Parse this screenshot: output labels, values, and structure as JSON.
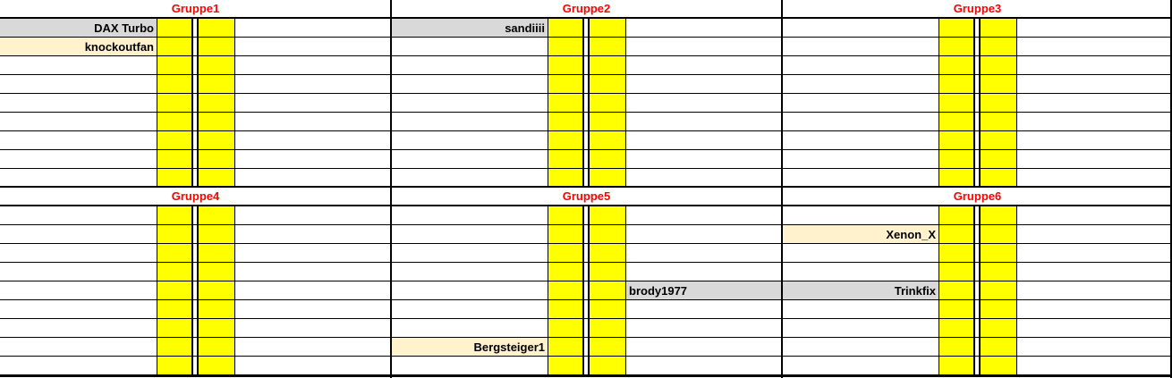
{
  "colors": {
    "header_text": "#ff0000",
    "score_column": "#ffff00",
    "highlight_gray": "#d9d9d9",
    "highlight_cream": "#fff2cc"
  },
  "groups": [
    {
      "title": "Gruppe1",
      "entries": [
        {
          "row": 1,
          "text": "DAX Turbo",
          "bg": "#d9d9d9"
        },
        {
          "row": 2,
          "text": "knockoutfan",
          "bg": "#fff2cc"
        }
      ]
    },
    {
      "title": "Gruppe2",
      "entries": [
        {
          "row": 1,
          "text": "sandiiii",
          "bg": "#d9d9d9"
        }
      ]
    },
    {
      "title": "Gruppe3",
      "entries": []
    },
    {
      "title": "Gruppe4",
      "entries": []
    },
    {
      "title": "Gruppe5",
      "entries": [
        {
          "row": 8,
          "text": "Bergsteiger1",
          "bg": "#fff2cc"
        }
      ],
      "extra": [
        {
          "row": 5,
          "text": "brody1977",
          "bg": "#d9d9d9"
        }
      ]
    },
    {
      "title": "Gruppe6",
      "entries": [
        {
          "row": 2,
          "text": "Xenon_X",
          "bg": "#fff2cc"
        },
        {
          "row": 5,
          "text": "Trinkfix",
          "bg": "#d9d9d9"
        }
      ]
    }
  ]
}
